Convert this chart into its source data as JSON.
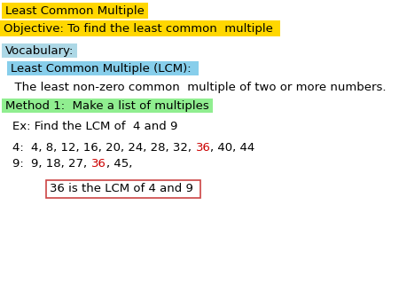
{
  "title": "Least Common Multiple",
  "title_bg": "#FFD700",
  "objective": "Objective: To find the least common  multiple",
  "objective_bg": "#FFD700",
  "vocabulary_label": "Vocabulary:",
  "vocabulary_bg": "#ADD8E6",
  "lcm_label": "Least Common Multiple (LCM):",
  "lcm_bg": "#87CEEB",
  "definition": "  The least non-zero common  multiple of two or more numbers.",
  "method": "Method 1:  Make a list of multiples",
  "method_bg": "#90EE90",
  "example": "Ex: Find the LCM of  4 and 9",
  "row4_label": "4:  ",
  "row4_before": "4, 8, 12, 16, 20, 24, 28, 32, ",
  "row4_highlight": "36",
  "row4_after": ", 40, 44",
  "row9_label": "9:  ",
  "row9_before": "9, 18, 27, ",
  "row9_highlight": "36",
  "row9_after": ", 45,",
  "highlight_color": "#CC0000",
  "answer": "36 is the LCM of 4 and 9",
  "answer_border": "#CC4444",
  "bg_color": "#FFFFFF",
  "text_color": "#000000",
  "label_indent": 8,
  "row_indent": 28
}
